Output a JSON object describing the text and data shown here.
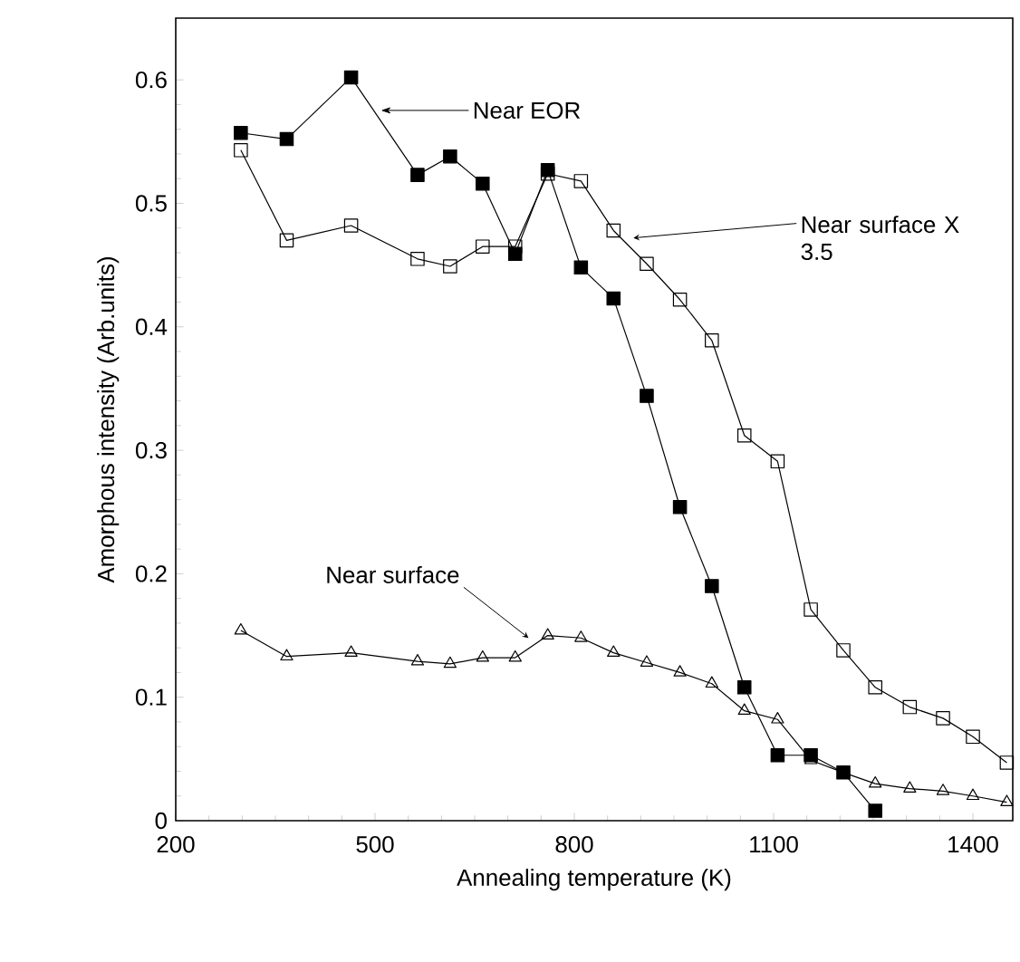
{
  "chart_data": {
    "type": "line",
    "xlabel": "Annealing temperature (K)",
    "ylabel": "Amorphous intensity (Arb.units)",
    "xlim": [
      200,
      1460
    ],
    "ylim": [
      0,
      0.65
    ],
    "xticks": [
      200,
      500,
      800,
      1100,
      1400
    ],
    "yticks": [
      0,
      0.1,
      0.2,
      0.3,
      0.4,
      0.5,
      0.6
    ],
    "line_style": "solid",
    "series": [
      {
        "color": "#000000",
        "marker": "square",
        "x": [
          298,
          367,
          464,
          564,
          613,
          662,
          711,
          760,
          810,
          859,
          909,
          959,
          1007,
          1056,
          1106,
          1156,
          1205,
          1253
        ],
        "values": [
          0.557,
          0.552,
          0.602,
          0.523,
          0.538,
          0.516,
          0.459,
          0.527,
          0.448,
          0.423,
          0.344,
          0.254,
          0.19,
          0.108,
          0.053,
          0.053,
          0.039,
          0.008
        ]
      },
      {
        "color": "#000000",
        "marker": "square",
        "x": [
          298,
          367,
          464,
          564,
          613,
          662,
          711,
          760,
          810,
          859,
          909,
          959,
          1007,
          1056,
          1106,
          1156,
          1205,
          1253,
          1305,
          1355,
          1400,
          1451
        ],
        "values": [
          0.543,
          0.47,
          0.482,
          0.455,
          0.449,
          0.465,
          0.465,
          0.524,
          0.518,
          0.478,
          0.451,
          0.422,
          0.389,
          0.312,
          0.291,
          0.171,
          0.138,
          0.108,
          0.092,
          0.083,
          0.068,
          0.047
        ]
      },
      {
        "color": "#000000",
        "marker": "triangle",
        "x": [
          298,
          367,
          464,
          564,
          613,
          662,
          711,
          760,
          810,
          859,
          909,
          959,
          1007,
          1056,
          1106,
          1156,
          1205,
          1253,
          1305,
          1355,
          1400,
          1451
        ],
        "values": [
          0.154,
          0.133,
          0.136,
          0.129,
          0.127,
          0.132,
          0.132,
          0.15,
          0.148,
          0.136,
          0.128,
          0.12,
          0.111,
          0.089,
          0.082,
          0.049,
          0.039,
          0.03,
          0.026,
          0.024,
          0.02,
          0.015
        ]
      }
    ],
    "annotations": [
      "Near EOR",
      {
        "text": "Near surface X 3.5",
        "x": 889,
        "y": 0.472
      },
      {
        "text": "Near surface",
        "x": 731,
        "y": 0.148
      }
    ]
  }
}
